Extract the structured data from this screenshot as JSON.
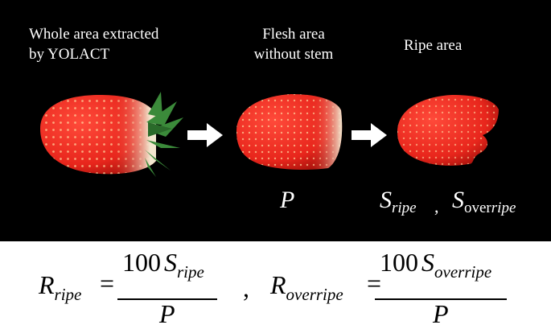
{
  "panel": {
    "captions": {
      "whole": "Whole area extracted\nby YOLACT",
      "flesh": "Flesh area\nwithout stem",
      "ripe": "Ripe area"
    },
    "labels": {
      "P": "P",
      "S": "S",
      "ripe_sub": "ripe",
      "comma": ",",
      "over_sub_prefix": "over",
      "over_sub_suffix": "ripe"
    }
  },
  "formula": {
    "R": "R",
    "ripe_sub": "ripe",
    "equals": "=",
    "hundred": "100",
    "S": "S",
    "P": "P",
    "comma": ",",
    "overripe_sub": "overripe"
  },
  "colors": {
    "background": "#000000",
    "berry_red": "#e8261c",
    "berry_shadow": "#a5120c",
    "unripe": "#f3e7cf",
    "stem_green": "#3b8a3a",
    "arrow": "#ffffff"
  }
}
